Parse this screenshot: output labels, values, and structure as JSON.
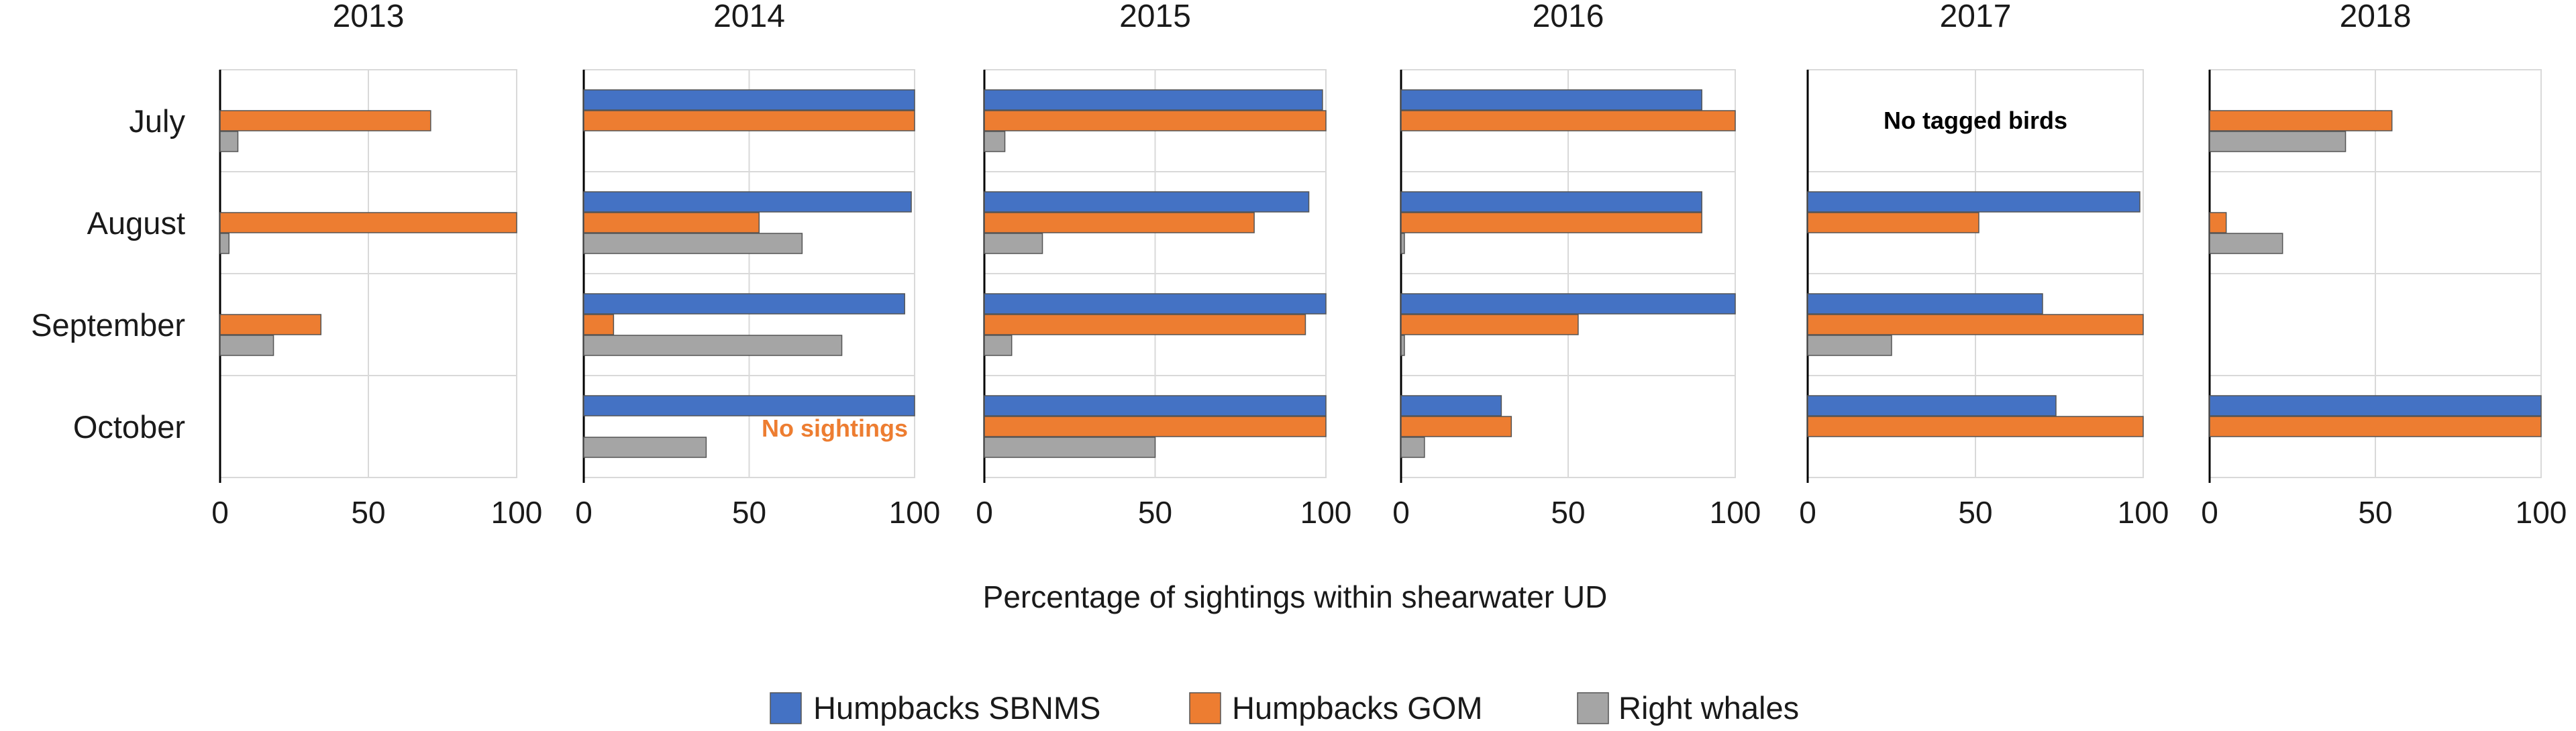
{
  "chart_data": {
    "type": "bar",
    "orientation": "horizontal",
    "xlabel": "Percentage of sightings within shearwater UD",
    "xlim": [
      0,
      100
    ],
    "xticks": [
      "0",
      "50",
      "100"
    ],
    "categories": [
      "July",
      "August",
      "September",
      "October"
    ],
    "series_names": [
      "Humpbacks SBNMS",
      "Humpbacks GOM",
      "Right whales"
    ],
    "colors": {
      "Humpbacks SBNMS": "#4472C4",
      "Humpbacks GOM": "#ED7D31",
      "Right whales": "#A5A5A5"
    },
    "legend_position": "bottom",
    "panels": [
      {
        "title": "2013",
        "series": [
          {
            "name": "Humpbacks SBNMS",
            "values": [
              null,
              null,
              null,
              null
            ]
          },
          {
            "name": "Humpbacks GOM",
            "values": [
              71,
              100,
              34,
              null
            ]
          },
          {
            "name": "Right whales",
            "values": [
              6,
              3,
              18,
              null
            ]
          }
        ],
        "annotations": []
      },
      {
        "title": "2014",
        "series": [
          {
            "name": "Humpbacks SBNMS",
            "values": [
              100,
              99,
              97,
              100
            ]
          },
          {
            "name": "Humpbacks GOM",
            "values": [
              100,
              53,
              9,
              null
            ]
          },
          {
            "name": "Right whales",
            "values": [
              null,
              66,
              78,
              37
            ]
          }
        ],
        "annotations": [
          {
            "text": "No sightings",
            "category": "October",
            "color": "orange"
          }
        ]
      },
      {
        "title": "2015",
        "series": [
          {
            "name": "Humpbacks SBNMS",
            "values": [
              99,
              95,
              100,
              100
            ]
          },
          {
            "name": "Humpbacks GOM",
            "values": [
              100,
              79,
              94,
              100
            ]
          },
          {
            "name": "Right whales",
            "values": [
              6,
              17,
              8,
              50
            ]
          }
        ],
        "annotations": []
      },
      {
        "title": "2016",
        "series": [
          {
            "name": "Humpbacks SBNMS",
            "values": [
              90,
              90,
              100,
              30
            ]
          },
          {
            "name": "Humpbacks GOM",
            "values": [
              100,
              90,
              53,
              33
            ]
          },
          {
            "name": "Right whales",
            "values": [
              null,
              1,
              1,
              7
            ]
          }
        ],
        "annotations": []
      },
      {
        "title": "2017",
        "series": [
          {
            "name": "Humpbacks SBNMS",
            "values": [
              null,
              99,
              70,
              74
            ]
          },
          {
            "name": "Humpbacks GOM",
            "values": [
              null,
              51,
              100,
              100
            ]
          },
          {
            "name": "Right whales",
            "values": [
              null,
              null,
              25,
              null
            ]
          }
        ],
        "annotations": [
          {
            "text": "No tagged birds",
            "category": "July",
            "color": "black"
          }
        ]
      },
      {
        "title": "2018",
        "series": [
          {
            "name": "Humpbacks SBNMS",
            "values": [
              null,
              null,
              null,
              100
            ]
          },
          {
            "name": "Humpbacks GOM",
            "values": [
              55,
              5,
              null,
              100
            ]
          },
          {
            "name": "Right whales",
            "values": [
              41,
              22,
              null,
              null
            ]
          }
        ],
        "annotations": []
      }
    ]
  }
}
